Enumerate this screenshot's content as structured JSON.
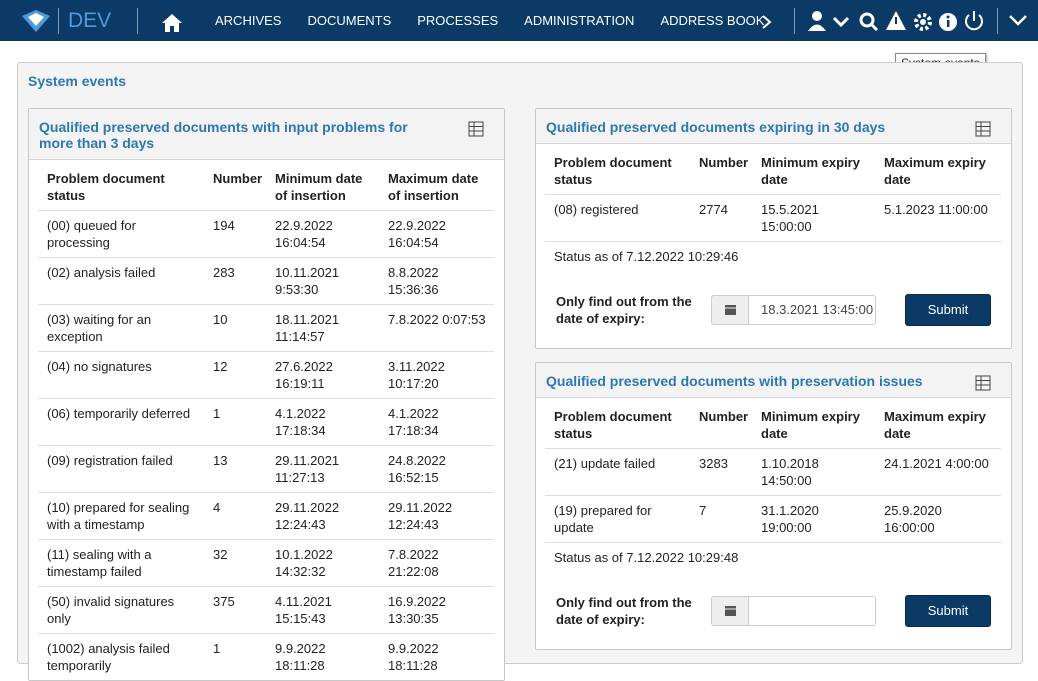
{
  "header": {
    "logo_text": "DEV",
    "nav": [
      "ARCHIVES",
      "DOCUMENTS",
      "PROCESSES",
      "ADMINISTRATION",
      "ADDRESS BOOK"
    ],
    "tooltip": "System events"
  },
  "section": {
    "title": "System events"
  },
  "panels": [
    {
      "title": "Qualified preserved documents with input problems for more than 3 days",
      "columns": [
        "Problem document status",
        "Number",
        "Minimum date of insertion",
        "Maximum date of insertion"
      ],
      "rows": [
        [
          "(00) queued for processing",
          194,
          "22.9.2022 16:04:54",
          "22.9.2022 16:04:54"
        ],
        [
          "(02) analysis failed",
          283,
          "10.11.2021 9:53:30",
          "8.8.2022 15:36:36"
        ],
        [
          "(03) waiting for an exception",
          10,
          "18.11.2021 11:14:57",
          "7.8.2022 0:07:53"
        ],
        [
          "(04) no signatures",
          12,
          "27.6.2022 16:19:11",
          "3.11.2022 10:17:20"
        ],
        [
          "(06) temporarily deferred",
          1,
          "4.1.2022 17:18:34",
          "4.1.2022 17:18:34"
        ],
        [
          "(09) registration failed",
          13,
          "29.11.2021 11:27:13",
          "24.8.2022 16:52:15"
        ],
        [
          "(10) prepared for sealing with a timestamp",
          4,
          "29.11.2022 12:24:43",
          "29.11.2022 12:24:43"
        ],
        [
          "(11) sealing with a timestamp failed",
          32,
          "10.1.2022 14:32:32",
          "7.8.2022 21:22:08"
        ],
        [
          "(50) invalid signatures only",
          375,
          "4.11.2021 15:15:43",
          "16.9.2022 13:30:35"
        ],
        [
          "(1002) analysis failed temporarily",
          1,
          "9.9.2022 18:11:28",
          "9.9.2022 18:11:28"
        ]
      ]
    },
    {
      "title": "Qualified preserved documents expiring in 30 days",
      "columns": [
        "Problem document status",
        "Number",
        "Minimum expiry date",
        "Maximum expiry date"
      ],
      "rows": [
        [
          "(08) registered",
          2774,
          "15.5.2021 15:00:00",
          "5.1.2023 11:00:00"
        ]
      ],
      "status": "Status as of 7.12.2022 10:29:46",
      "filter_label": "Only find out from the date of expiry:",
      "date_value": "18.3.2021 13:45:00",
      "button": "Submit"
    },
    {
      "title": "Qualified preserved documents with preservation issues",
      "columns": [
        "Problem document status",
        "Number",
        "Minimum expiry date",
        "Maximum expiry date"
      ],
      "rows": [
        [
          "(21) update failed",
          3283,
          "1.10.2018 14:50:00",
          "24.1.2021 4:00:00"
        ],
        [
          "(19) prepared for update",
          7,
          "31.1.2020 19:00:00",
          "25.9.2020 16:00:00"
        ]
      ],
      "status": "Status as of 7.12.2022 10:29:48",
      "filter_label": "Only find out from the date of expiry:",
      "button": "Submit"
    }
  ]
}
